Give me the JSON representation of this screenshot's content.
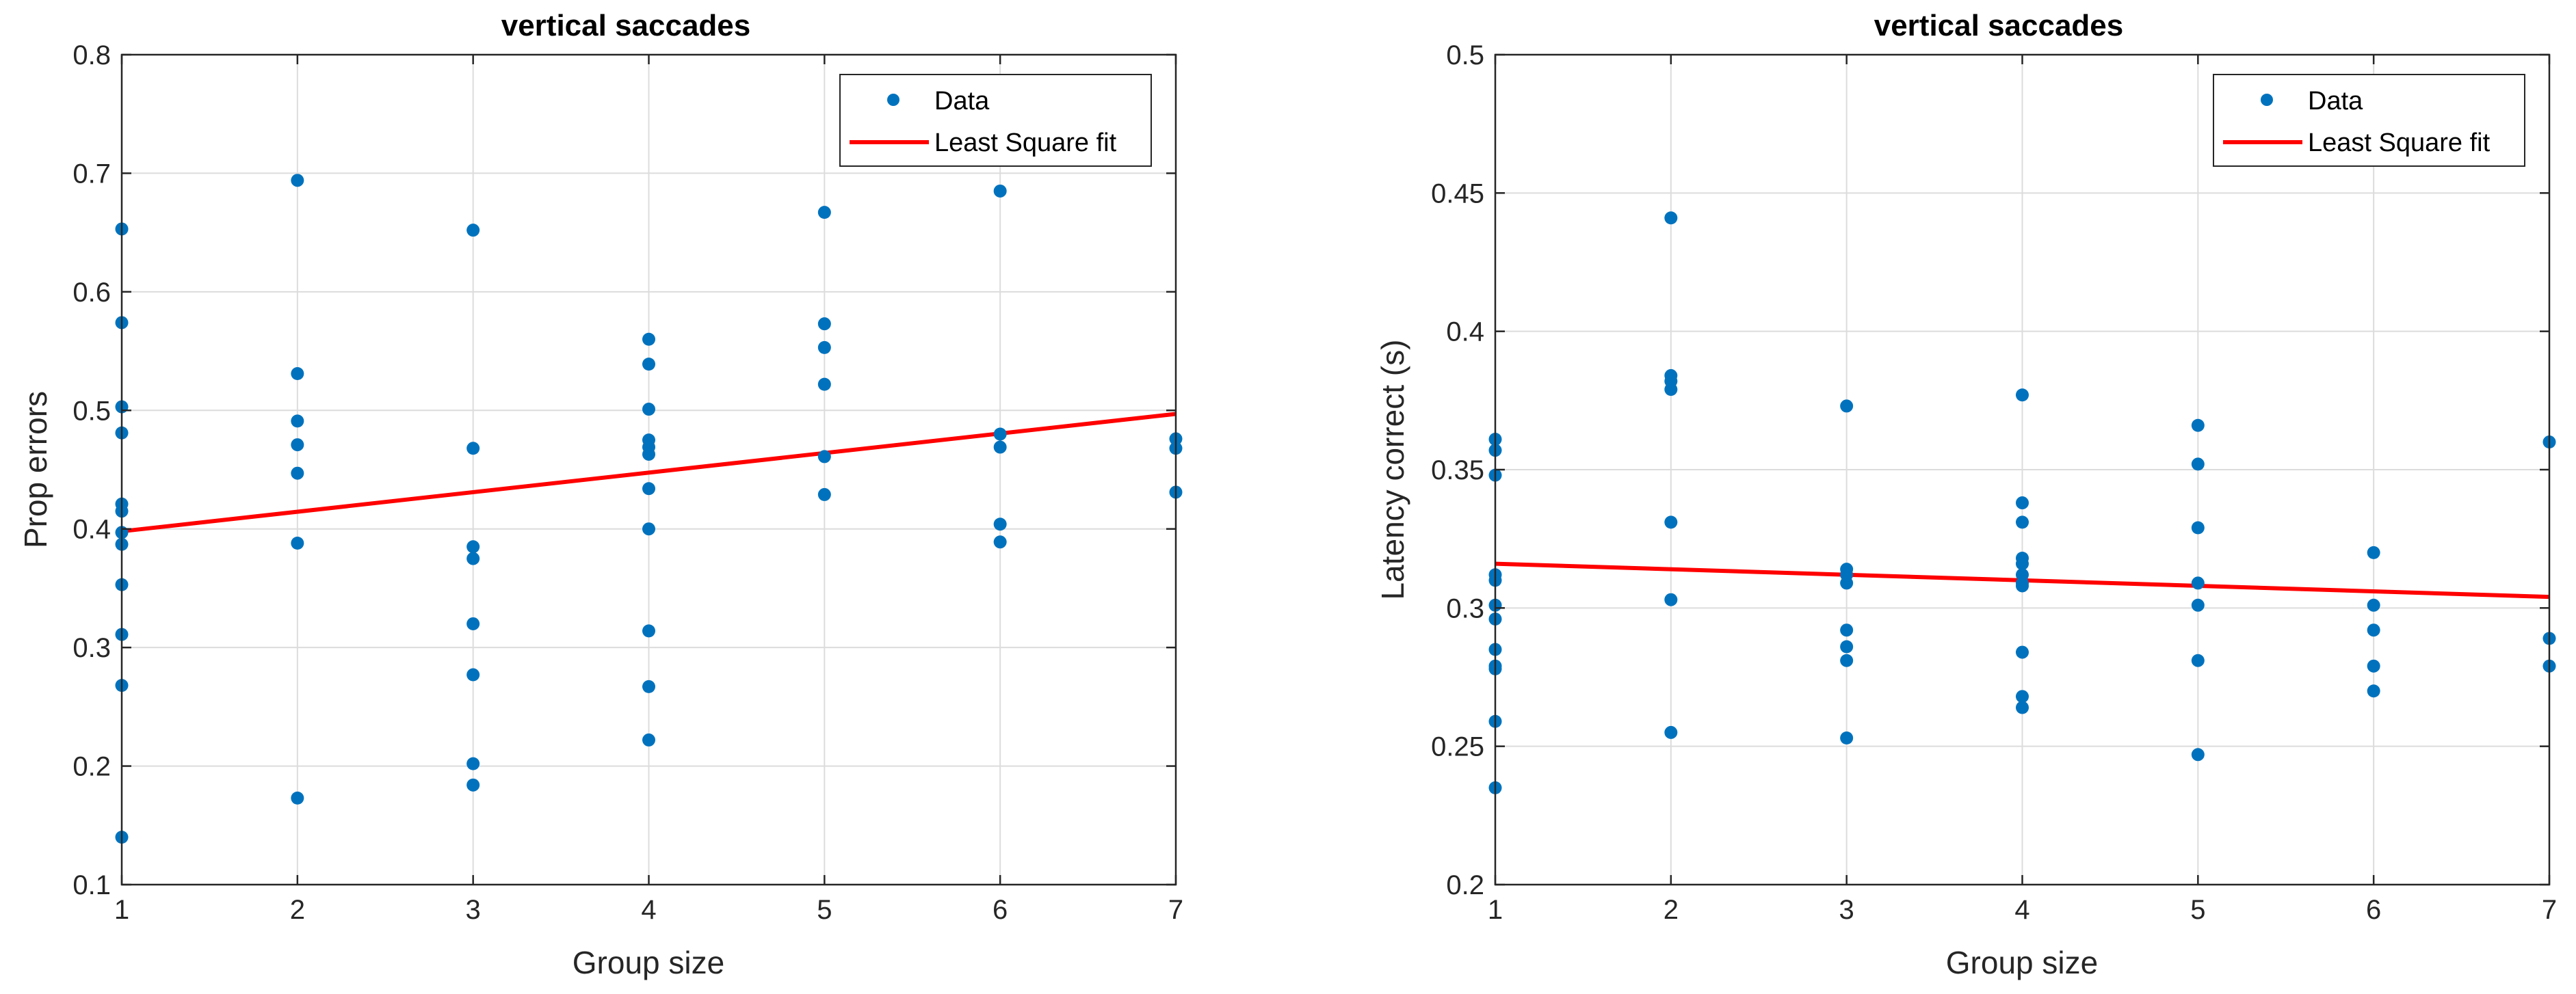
{
  "chart_data": [
    {
      "type": "scatter",
      "title": "vertical saccades",
      "xlabel": "Group size",
      "ylabel": "Prop errors",
      "xlim": [
        1,
        7
      ],
      "ylim": [
        0.1,
        0.8
      ],
      "xticks": [
        1,
        2,
        3,
        4,
        5,
        6,
        7
      ],
      "yticks": [
        0.1,
        0.2,
        0.3,
        0.4,
        0.5,
        0.6,
        0.7,
        0.8
      ],
      "xtick_labels": [
        "1",
        "2",
        "3",
        "4",
        "5",
        "6",
        "7"
      ],
      "ytick_labels": [
        "0.1",
        "0.2",
        "0.3",
        "0.4",
        "0.5",
        "0.6",
        "0.7",
        "0.8"
      ],
      "grid": true,
      "legend": {
        "position": "top-right",
        "entries": [
          "Data",
          "Least Square fit"
        ]
      },
      "series": [
        {
          "name": "Data",
          "kind": "scatter",
          "color": "#0072BD",
          "points": [
            [
              1,
              0.653
            ],
            [
              1,
              0.574
            ],
            [
              1,
              0.503
            ],
            [
              1,
              0.481
            ],
            [
              1,
              0.421
            ],
            [
              1,
              0.415
            ],
            [
              1,
              0.397
            ],
            [
              1,
              0.387
            ],
            [
              1,
              0.353
            ],
            [
              1,
              0.311
            ],
            [
              1,
              0.268
            ],
            [
              1,
              0.14
            ],
            [
              2,
              0.694
            ],
            [
              2,
              0.531
            ],
            [
              2,
              0.491
            ],
            [
              2,
              0.471
            ],
            [
              2,
              0.447
            ],
            [
              2,
              0.388
            ],
            [
              2,
              0.173
            ],
            [
              3,
              0.652
            ],
            [
              3,
              0.468
            ],
            [
              3,
              0.385
            ],
            [
              3,
              0.375
            ],
            [
              3,
              0.32
            ],
            [
              3,
              0.277
            ],
            [
              3,
              0.202
            ],
            [
              3,
              0.184
            ],
            [
              4,
              0.56
            ],
            [
              4,
              0.539
            ],
            [
              4,
              0.501
            ],
            [
              4,
              0.475
            ],
            [
              4,
              0.469
            ],
            [
              4,
              0.463
            ],
            [
              4,
              0.434
            ],
            [
              4,
              0.4
            ],
            [
              4,
              0.314
            ],
            [
              4,
              0.267
            ],
            [
              4,
              0.222
            ],
            [
              5,
              0.667
            ],
            [
              5,
              0.573
            ],
            [
              5,
              0.553
            ],
            [
              5,
              0.522
            ],
            [
              5,
              0.461
            ],
            [
              5,
              0.429
            ],
            [
              6,
              0.685
            ],
            [
              6,
              0.48
            ],
            [
              6,
              0.469
            ],
            [
              6,
              0.404
            ],
            [
              6,
              0.389
            ],
            [
              7,
              0.476
            ],
            [
              7,
              0.468
            ],
            [
              7,
              0.431
            ]
          ]
        },
        {
          "name": "Least Square fit",
          "kind": "line",
          "color": "#FF0000",
          "points": [
            [
              1,
              0.398
            ],
            [
              7,
              0.497
            ]
          ]
        }
      ]
    },
    {
      "type": "scatter",
      "title": "vertical saccades",
      "xlabel": "Group size",
      "ylabel": "Latency correct (s)",
      "xlim": [
        1,
        7
      ],
      "ylim": [
        0.2,
        0.5
      ],
      "xticks": [
        1,
        2,
        3,
        4,
        5,
        6,
        7
      ],
      "yticks": [
        0.2,
        0.25,
        0.3,
        0.35,
        0.4,
        0.45,
        0.5
      ],
      "xtick_labels": [
        "1",
        "2",
        "3",
        "4",
        "5",
        "6",
        "7"
      ],
      "ytick_labels": [
        "0.2",
        "0.25",
        "0.3",
        "0.35",
        "0.4",
        "0.45",
        "0.5"
      ],
      "grid": true,
      "legend": {
        "position": "top-right",
        "entries": [
          "Data",
          "Least Square fit"
        ]
      },
      "series": [
        {
          "name": "Data",
          "kind": "scatter",
          "color": "#0072BD",
          "points": [
            [
              1,
              0.361
            ],
            [
              1,
              0.357
            ],
            [
              1,
              0.348
            ],
            [
              1,
              0.312
            ],
            [
              1,
              0.31
            ],
            [
              1,
              0.301
            ],
            [
              1,
              0.296
            ],
            [
              1,
              0.285
            ],
            [
              1,
              0.279
            ],
            [
              1,
              0.278
            ],
            [
              1,
              0.259
            ],
            [
              1,
              0.235
            ],
            [
              2,
              0.441
            ],
            [
              2,
              0.384
            ],
            [
              2,
              0.382
            ],
            [
              2,
              0.379
            ],
            [
              2,
              0.331
            ],
            [
              2,
              0.303
            ],
            [
              2,
              0.255
            ],
            [
              3,
              0.373
            ],
            [
              3,
              0.314
            ],
            [
              3,
              0.312
            ],
            [
              3,
              0.309
            ],
            [
              3,
              0.292
            ],
            [
              3,
              0.286
            ],
            [
              3,
              0.281
            ],
            [
              3,
              0.253
            ],
            [
              4,
              0.377
            ],
            [
              4,
              0.338
            ],
            [
              4,
              0.331
            ],
            [
              4,
              0.318
            ],
            [
              4,
              0.316
            ],
            [
              4,
              0.312
            ],
            [
              4,
              0.309
            ],
            [
              4,
              0.308
            ],
            [
              4,
              0.284
            ],
            [
              4,
              0.268
            ],
            [
              4,
              0.264
            ],
            [
              5,
              0.366
            ],
            [
              5,
              0.352
            ],
            [
              5,
              0.329
            ],
            [
              5,
              0.309
            ],
            [
              5,
              0.301
            ],
            [
              5,
              0.281
            ],
            [
              5,
              0.247
            ],
            [
              6,
              0.32
            ],
            [
              6,
              0.301
            ],
            [
              6,
              0.292
            ],
            [
              6,
              0.279
            ],
            [
              6,
              0.27
            ],
            [
              7,
              0.36
            ],
            [
              7,
              0.289
            ],
            [
              7,
              0.279
            ]
          ]
        },
        {
          "name": "Least Square fit",
          "kind": "line",
          "color": "#FF0000",
          "points": [
            [
              1,
              0.316
            ],
            [
              7,
              0.304
            ]
          ]
        }
      ]
    }
  ]
}
